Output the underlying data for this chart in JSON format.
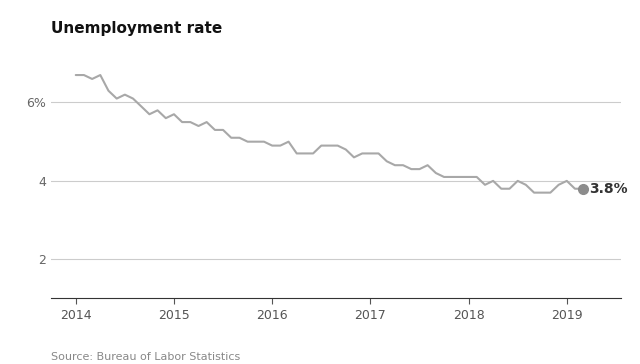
{
  "title": "Unemployment rate",
  "source": "Source: Bureau of Labor Statistics",
  "line_color": "#a8a8a8",
  "marker_color": "#8c8c8c",
  "background_color": "#ffffff",
  "annotation_label": "3.8%",
  "annotation_fontsize": 10,
  "ylim": [
    1.0,
    7.5
  ],
  "yticks": [
    2,
    4,
    6
  ],
  "xlim_start": 2013.75,
  "xlim_end": 2019.55,
  "months": [
    2014.0,
    2014.083,
    2014.167,
    2014.25,
    2014.333,
    2014.417,
    2014.5,
    2014.583,
    2014.667,
    2014.75,
    2014.833,
    2014.917,
    2015.0,
    2015.083,
    2015.167,
    2015.25,
    2015.333,
    2015.417,
    2015.5,
    2015.583,
    2015.667,
    2015.75,
    2015.833,
    2015.917,
    2016.0,
    2016.083,
    2016.167,
    2016.25,
    2016.333,
    2016.417,
    2016.5,
    2016.583,
    2016.667,
    2016.75,
    2016.833,
    2016.917,
    2017.0,
    2017.083,
    2017.167,
    2017.25,
    2017.333,
    2017.417,
    2017.5,
    2017.583,
    2017.667,
    2017.75,
    2017.833,
    2017.917,
    2018.0,
    2018.083,
    2018.167,
    2018.25,
    2018.333,
    2018.417,
    2018.5,
    2018.583,
    2018.667,
    2018.75,
    2018.833,
    2018.917,
    2019.0,
    2019.083,
    2019.167
  ],
  "values": [
    6.7,
    6.7,
    6.6,
    6.7,
    6.3,
    6.1,
    6.2,
    6.1,
    5.9,
    5.7,
    5.8,
    5.6,
    5.7,
    5.5,
    5.5,
    5.4,
    5.5,
    5.3,
    5.3,
    5.1,
    5.1,
    5.0,
    5.0,
    5.0,
    4.9,
    4.9,
    5.0,
    4.7,
    4.7,
    4.7,
    4.9,
    4.9,
    4.9,
    4.8,
    4.6,
    4.7,
    4.7,
    4.7,
    4.5,
    4.4,
    4.4,
    4.3,
    4.3,
    4.4,
    4.2,
    4.1,
    4.1,
    4.1,
    4.1,
    4.1,
    3.9,
    4.0,
    3.8,
    3.8,
    4.0,
    3.9,
    3.7,
    3.7,
    3.7,
    3.9,
    4.0,
    3.8,
    3.8
  ],
  "xticks": [
    2014,
    2015,
    2016,
    2017,
    2018,
    2019
  ]
}
